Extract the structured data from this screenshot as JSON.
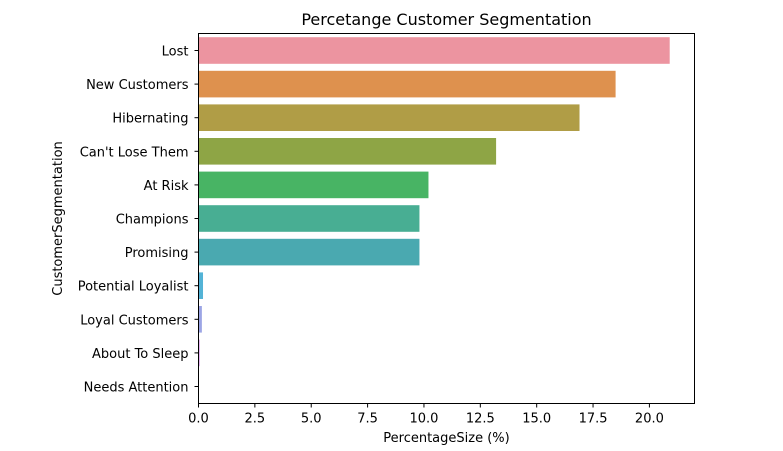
{
  "chart_data": {
    "type": "bar",
    "orientation": "horizontal",
    "title": "Percetange Customer Segmentation",
    "xlabel": "PercentageSize (%)",
    "ylabel": "CustomerSegmentation",
    "xlim": [
      0,
      22
    ],
    "xticks": [
      0.0,
      2.5,
      5.0,
      7.5,
      10.0,
      12.5,
      15.0,
      17.5,
      20.0
    ],
    "xtick_labels": [
      "0.0",
      "2.5",
      "5.0",
      "7.5",
      "10.0",
      "12.5",
      "15.0",
      "17.5",
      "20.0"
    ],
    "grid": false,
    "categories": [
      "Lost",
      "New Customers",
      "Hibernating",
      "Can't Lose Them",
      "At Risk",
      "Champions",
      "Promising",
      "Potential Loyalist",
      "Loyal Customers",
      "About To Sleep",
      "Needs Attention"
    ],
    "values": [
      20.9,
      18.5,
      16.9,
      13.2,
      10.2,
      9.8,
      9.8,
      0.2,
      0.15,
      0.05,
      0.02
    ],
    "colors": [
      "#ec94a0",
      "#de914e",
      "#b09d46",
      "#8ea545",
      "#48b464",
      "#48ae93",
      "#4aa9b0",
      "#53b3d6",
      "#9ca5e5",
      "#d68ceb",
      "#e995cc"
    ]
  }
}
